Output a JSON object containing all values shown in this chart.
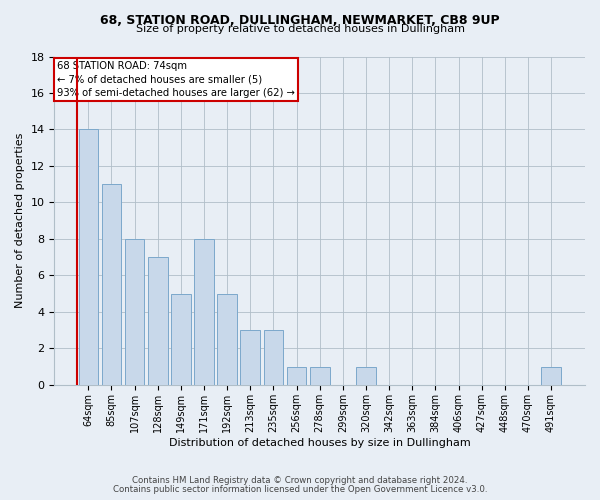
{
  "title": "68, STATION ROAD, DULLINGHAM, NEWMARKET, CB8 9UP",
  "subtitle": "Size of property relative to detached houses in Dullingham",
  "xlabel": "Distribution of detached houses by size in Dullingham",
  "ylabel": "Number of detached properties",
  "categories": [
    "64sqm",
    "85sqm",
    "107sqm",
    "128sqm",
    "149sqm",
    "171sqm",
    "192sqm",
    "213sqm",
    "235sqm",
    "256sqm",
    "278sqm",
    "299sqm",
    "320sqm",
    "342sqm",
    "363sqm",
    "384sqm",
    "406sqm",
    "427sqm",
    "448sqm",
    "470sqm",
    "491sqm"
  ],
  "values": [
    14,
    11,
    8,
    7,
    5,
    8,
    5,
    3,
    3,
    1,
    1,
    0,
    1,
    0,
    0,
    0,
    0,
    0,
    0,
    0,
    1
  ],
  "bar_color": "#c8d8ea",
  "bar_edge_color": "#7ca8cb",
  "annotation_line_color": "#cc0000",
  "annotation_text_line1": "68 STATION ROAD: 74sqm",
  "annotation_text_line2": "← 7% of detached houses are smaller (5)",
  "annotation_text_line3": "93% of semi-detached houses are larger (62) →",
  "ylim": [
    0,
    18
  ],
  "yticks": [
    0,
    2,
    4,
    6,
    8,
    10,
    12,
    14,
    16,
    18
  ],
  "footer_line1": "Contains HM Land Registry data © Crown copyright and database right 2024.",
  "footer_line2": "Contains public sector information licensed under the Open Government Licence v3.0.",
  "bg_color": "#e8eef5",
  "plot_bg_color": "#e8eef5",
  "grid_color": "#b0bec8"
}
